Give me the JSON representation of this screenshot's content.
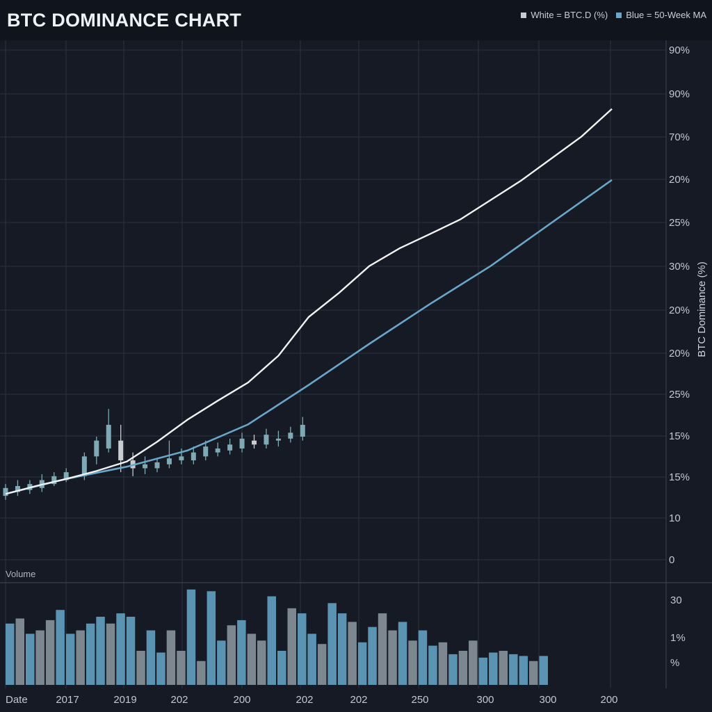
{
  "title": "BTC DOMINANCE CHART",
  "legend": {
    "white_label": "White = BTC.D (%)",
    "blue_label": "Blue = 50-Week MA"
  },
  "colors": {
    "background": "#151a24",
    "header": "#10141c",
    "grid": "#2b3140",
    "price_line": "#f2f2f2",
    "ma_line": "#6aa6c8",
    "candle_up": "#7fa9b4",
    "candle_down": "#c9ccd0",
    "volume_blue": "#5b93b3",
    "volume_gray": "#7c8790"
  },
  "chart_data": {
    "type": "line",
    "title": "BTC DOMINANCE CHART",
    "ylabel": "BTC Dominance (%)",
    "xlabel": "Date",
    "y_tick_labels": [
      "90%",
      "90%",
      "70%",
      "20%",
      "25%",
      "30%",
      "20%",
      "20%",
      "25%",
      "15%",
      "15%",
      "10",
      "0"
    ],
    "x_tick_labels": [
      "2017",
      "2019",
      "202",
      "200",
      "202",
      "202",
      "250",
      "300",
      "300",
      "200"
    ],
    "volume_label": "Volume",
    "volume_tick_labels": [
      "30",
      "1%",
      "%"
    ],
    "series": [
      {
        "name": "White = BTC.D (%)",
        "x": [
          0,
          5,
          10,
          15,
          20,
          25,
          30,
          35,
          40,
          45,
          50,
          55,
          60,
          65,
          70,
          75,
          80,
          85,
          90,
          95,
          100
        ],
        "values": [
          10.5,
          12.5,
          14.3,
          16.3,
          18.7,
          23.7,
          29.3,
          34.1,
          38.7,
          45.5,
          55.3,
          61.4,
          68.2,
          72.7,
          76.3,
          80.0,
          84.9,
          89.8,
          95.4,
          101.0,
          108.0
        ]
      },
      {
        "name": "Blue = 50-Week MA",
        "x": [
          0,
          10,
          20,
          30,
          40,
          50,
          60,
          70,
          80,
          90,
          100
        ],
        "values": [
          10.5,
          14.3,
          17.4,
          21.5,
          28.1,
          38.1,
          48.5,
          58.6,
          68.2,
          79.1,
          90.0
        ]
      },
      {
        "name": "Volume",
        "values": [
          36,
          39,
          30,
          32,
          38,
          44,
          30,
          32,
          36,
          40,
          36,
          42,
          40,
          20,
          32,
          19,
          32,
          20,
          56,
          14,
          55,
          26,
          35,
          38,
          30,
          26,
          52,
          20,
          45,
          42,
          30,
          24,
          48,
          42,
          37,
          25,
          34,
          42,
          32,
          37,
          26,
          32,
          23,
          25,
          18,
          20,
          26,
          16,
          19,
          20,
          18,
          17,
          14,
          17
        ]
      }
    ],
    "candles": [
      {
        "x": 0,
        "o": 10.0,
        "c": 12.0,
        "h": 13.0,
        "l": 9.0
      },
      {
        "x": 2,
        "o": 11.0,
        "c": 12.5,
        "h": 14.0,
        "l": 10.0
      },
      {
        "x": 4,
        "o": 11.5,
        "c": 13.0,
        "h": 14.0,
        "l": 10.5
      },
      {
        "x": 6,
        "o": 12.0,
        "c": 14.0,
        "h": 15.5,
        "l": 11.0
      },
      {
        "x": 8,
        "o": 13.0,
        "c": 15.0,
        "h": 16.0,
        "l": 12.5
      },
      {
        "x": 10,
        "o": 14.0,
        "c": 16.0,
        "h": 17.0,
        "l": 13.5
      },
      {
        "x": 13,
        "o": 15.0,
        "c": 20.0,
        "h": 21.0,
        "l": 14.0
      },
      {
        "x": 15,
        "o": 20.0,
        "c": 24.0,
        "h": 25.0,
        "l": 18.0
      },
      {
        "x": 17,
        "o": 22.0,
        "c": 28.0,
        "h": 32.0,
        "l": 21.0
      },
      {
        "x": 19,
        "o": 24.0,
        "c": 19.0,
        "h": 28.0,
        "l": 16.0
      },
      {
        "x": 21,
        "o": 19.0,
        "c": 17.0,
        "h": 21.0,
        "l": 15.0
      },
      {
        "x": 23,
        "o": 17.0,
        "c": 18.0,
        "h": 20.0,
        "l": 15.5
      },
      {
        "x": 25,
        "o": 17.0,
        "c": 18.5,
        "h": 19.5,
        "l": 16.0
      },
      {
        "x": 27,
        "o": 18.0,
        "c": 19.5,
        "h": 24.0,
        "l": 17.0
      },
      {
        "x": 29,
        "o": 19.0,
        "c": 20.0,
        "h": 22.0,
        "l": 18.0
      },
      {
        "x": 31,
        "o": 19.0,
        "c": 21.0,
        "h": 22.5,
        "l": 18.0
      },
      {
        "x": 33,
        "o": 20.0,
        "c": 22.5,
        "h": 24.0,
        "l": 19.0
      },
      {
        "x": 35,
        "o": 21.0,
        "c": 22.0,
        "h": 23.5,
        "l": 20.0
      },
      {
        "x": 37,
        "o": 21.5,
        "c": 23.0,
        "h": 24.5,
        "l": 20.5
      },
      {
        "x": 39,
        "o": 22.0,
        "c": 24.5,
        "h": 26.0,
        "l": 21.0
      },
      {
        "x": 41,
        "o": 24.0,
        "c": 23.0,
        "h": 25.5,
        "l": 22.0
      },
      {
        "x": 43,
        "o": 23.0,
        "c": 25.5,
        "h": 27.0,
        "l": 22.0
      },
      {
        "x": 45,
        "o": 24.0,
        "c": 24.5,
        "h": 26.5,
        "l": 22.5
      },
      {
        "x": 47,
        "o": 24.5,
        "c": 26.0,
        "h": 27.5,
        "l": 23.5
      },
      {
        "x": 49,
        "o": 25.0,
        "c": 28.0,
        "h": 30.0,
        "l": 24.0
      }
    ]
  }
}
